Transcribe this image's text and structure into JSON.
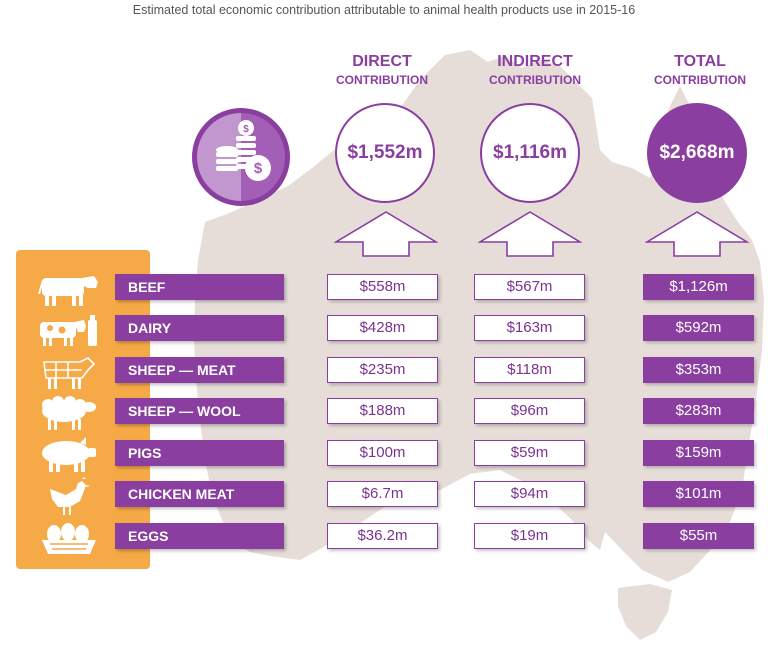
{
  "title": "Estimated total economic contribution attributable to animal health products use in 2015-16",
  "colors": {
    "purple": "#8a3ea0",
    "orange": "#f6a947",
    "map": "#e6ddd8"
  },
  "icons": {
    "summary": "coins-icon",
    "rows": [
      "cow-icon",
      "dairy-icon",
      "sheep-meat-icon",
      "sheep-icon",
      "pig-icon",
      "chicken-icon",
      "eggs-icon"
    ]
  },
  "columns": [
    {
      "line1": "DIRECT",
      "line2": "CONTRIBUTION",
      "total": "$1,552m"
    },
    {
      "line1": "INDIRECT",
      "line2": "CONTRIBUTION",
      "total": "$1,116m"
    },
    {
      "line1": "TOTAL",
      "line2": "CONTRIBUTION",
      "total": "$2,668m"
    }
  ],
  "rows": [
    {
      "label": "BEEF",
      "direct": "$558m",
      "indirect": "$567m",
      "total": "$1,126m"
    },
    {
      "label": "DAIRY",
      "direct": "$428m",
      "indirect": "$163m",
      "total": "$592m"
    },
    {
      "label": "SHEEP — MEAT",
      "direct": "$235m",
      "indirect": "$118m",
      "total": "$353m"
    },
    {
      "label": "SHEEP — WOOL",
      "direct": "$188m",
      "indirect": "$96m",
      "total": "$283m"
    },
    {
      "label": "PIGS",
      "direct": "$100m",
      "indirect": "$59m",
      "total": "$159m"
    },
    {
      "label": "CHICKEN MEAT",
      "direct": "$6.7m",
      "indirect": "$94m",
      "total": "$101m"
    },
    {
      "label": "EGGS",
      "direct": "$36.2m",
      "indirect": "$19m",
      "total": "$55m"
    }
  ],
  "chart_data": {
    "type": "table",
    "title": "Estimated total economic contribution attributable to animal health products use in 2015-16",
    "columns": [
      "DIRECT CONTRIBUTION",
      "INDIRECT CONTRIBUTION",
      "TOTAL CONTRIBUTION"
    ],
    "categories": [
      "BEEF",
      "DAIRY",
      "SHEEP — MEAT",
      "SHEEP — WOOL",
      "PIGS",
      "CHICKEN MEAT",
      "EGGS"
    ],
    "series": [
      {
        "name": "DIRECT CONTRIBUTION",
        "values": [
          558,
          428,
          235,
          188,
          100,
          6.7,
          36.2
        ],
        "total": 1552
      },
      {
        "name": "INDIRECT CONTRIBUTION",
        "values": [
          567,
          163,
          118,
          96,
          59,
          94,
          19
        ],
        "total": 1116
      },
      {
        "name": "TOTAL CONTRIBUTION",
        "values": [
          1126,
          592,
          353,
          283,
          159,
          101,
          55
        ],
        "total": 2668
      }
    ]
  }
}
